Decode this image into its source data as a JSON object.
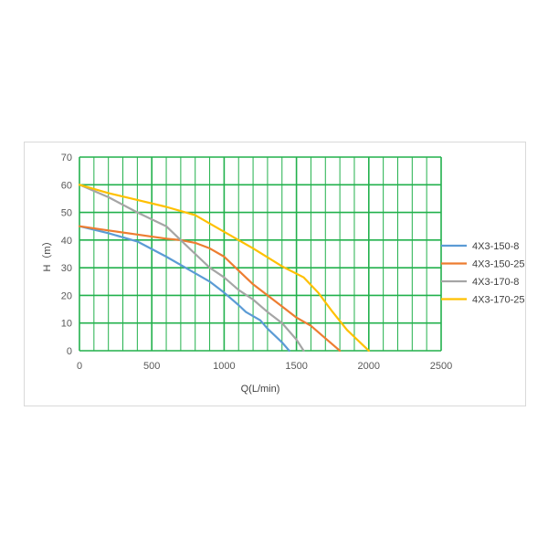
{
  "chart_data": {
    "type": "line",
    "xlabel": "Q(L/min)",
    "ylabel": "H（m）",
    "xlim": [
      0,
      2500
    ],
    "ylim": [
      0,
      70
    ],
    "x_ticks": [
      "0",
      "500",
      "1000",
      "1500",
      "2000",
      "2500"
    ],
    "y_ticks": [
      "0",
      "10",
      "20",
      "30",
      "40",
      "50",
      "60",
      "70"
    ],
    "grid": true,
    "grid_color": "#22b14c",
    "legend_position": "right",
    "series": [
      {
        "name": "4X3-150-8",
        "color": "#5b9bd5",
        "points": [
          [
            0,
            45
          ],
          [
            200,
            42.5
          ],
          [
            400,
            39.5
          ],
          [
            600,
            34
          ],
          [
            800,
            28
          ],
          [
            900,
            25
          ],
          [
            1000,
            21
          ],
          [
            1100,
            16.5
          ],
          [
            1150,
            14
          ],
          [
            1250,
            11
          ],
          [
            1300,
            8
          ],
          [
            1400,
            3
          ],
          [
            1450,
            0
          ]
        ]
      },
      {
        "name": "4X3-150-25",
        "color": "#ed7d31",
        "points": [
          [
            0,
            45
          ],
          [
            200,
            43.5
          ],
          [
            400,
            42
          ],
          [
            600,
            40.5
          ],
          [
            700,
            40
          ],
          [
            800,
            39
          ],
          [
            900,
            37
          ],
          [
            1000,
            34
          ],
          [
            1100,
            29
          ],
          [
            1200,
            24
          ],
          [
            1300,
            20
          ],
          [
            1400,
            16
          ],
          [
            1500,
            12
          ],
          [
            1600,
            9
          ],
          [
            1700,
            4.5
          ],
          [
            1800,
            0
          ]
        ]
      },
      {
        "name": "4X3-170-8",
        "color": "#a5a5a5",
        "points": [
          [
            0,
            60
          ],
          [
            200,
            55.5
          ],
          [
            400,
            50
          ],
          [
            600,
            45
          ],
          [
            700,
            40
          ],
          [
            800,
            35
          ],
          [
            900,
            30
          ],
          [
            1000,
            26.5
          ],
          [
            1100,
            22
          ],
          [
            1200,
            18.5
          ],
          [
            1300,
            14
          ],
          [
            1400,
            10
          ],
          [
            1500,
            4
          ],
          [
            1550,
            0
          ]
        ]
      },
      {
        "name": "4X3-170-25",
        "color": "#ffc000",
        "points": [
          [
            0,
            60
          ],
          [
            200,
            57
          ],
          [
            400,
            54.5
          ],
          [
            600,
            52
          ],
          [
            800,
            49
          ],
          [
            1000,
            43
          ],
          [
            1200,
            37
          ],
          [
            1400,
            30.5
          ],
          [
            1550,
            26.5
          ],
          [
            1650,
            21
          ],
          [
            1750,
            14
          ],
          [
            1850,
            7.5
          ],
          [
            2000,
            0
          ]
        ]
      }
    ]
  }
}
